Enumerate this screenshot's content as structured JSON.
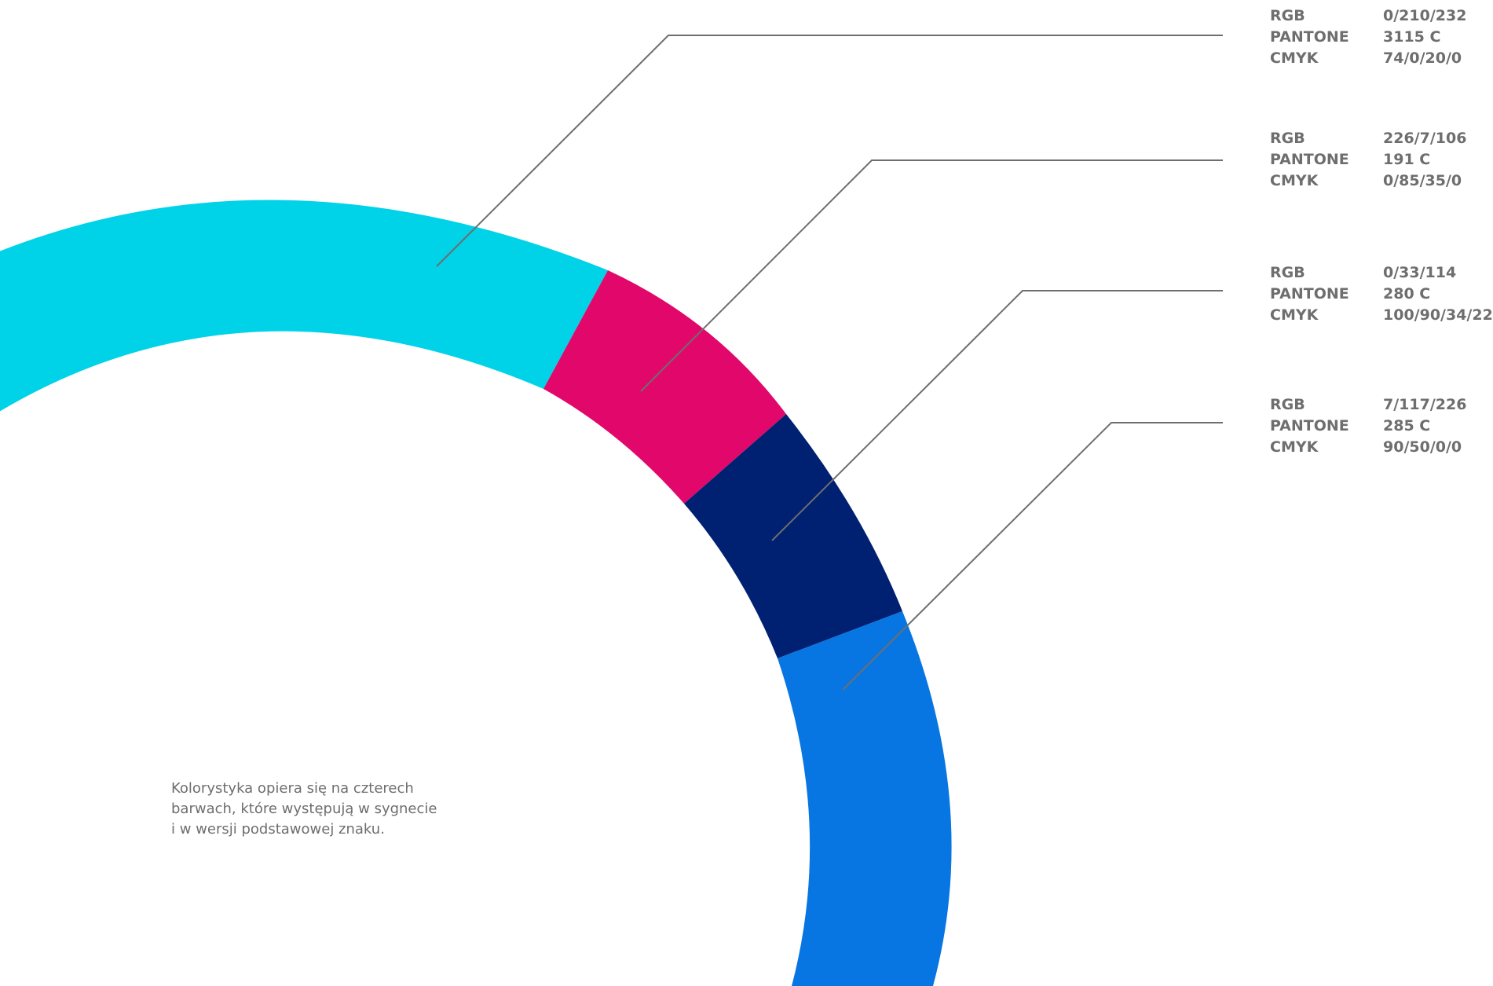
{
  "colors": {
    "cyan": "#00d2e8",
    "magenta": "#e2076a",
    "navy": "#002172",
    "blue": "#0775e2",
    "leader_line": "#6e6e6e",
    "text": "#6e6e6e"
  },
  "swatches": [
    {
      "color": "#00d2e8",
      "rows": [
        {
          "key": "RGB",
          "value": "0/210/232"
        },
        {
          "key": "PANTONE",
          "value": "3115 C"
        },
        {
          "key": "CMYK",
          "value": "74/0/20/0"
        }
      ]
    },
    {
      "color": "#e2076a",
      "rows": [
        {
          "key": "RGB",
          "value": "226/7/106"
        },
        {
          "key": "PANTONE",
          "value": "191 C"
        },
        {
          "key": "CMYK",
          "value": "0/85/35/0"
        }
      ]
    },
    {
      "color": "#002172",
      "rows": [
        {
          "key": "RGB",
          "value": "0/33/114"
        },
        {
          "key": "PANTONE",
          "value": "280 C"
        },
        {
          "key": "CMYK",
          "value": "100/90/34/22"
        }
      ]
    },
    {
      "color": "#0775e2",
      "rows": [
        {
          "key": "RGB",
          "value": "7/117/226"
        },
        {
          "key": "PANTONE",
          "value": "285 C"
        },
        {
          "key": "CMYK",
          "value": "90/50/0/0"
        }
      ]
    }
  ],
  "caption": {
    "lines": [
      "Kolorystyka opiera się na czterech",
      "barwach, które występują w sygnecie",
      "i w wersji podstawowej znaku."
    ]
  }
}
